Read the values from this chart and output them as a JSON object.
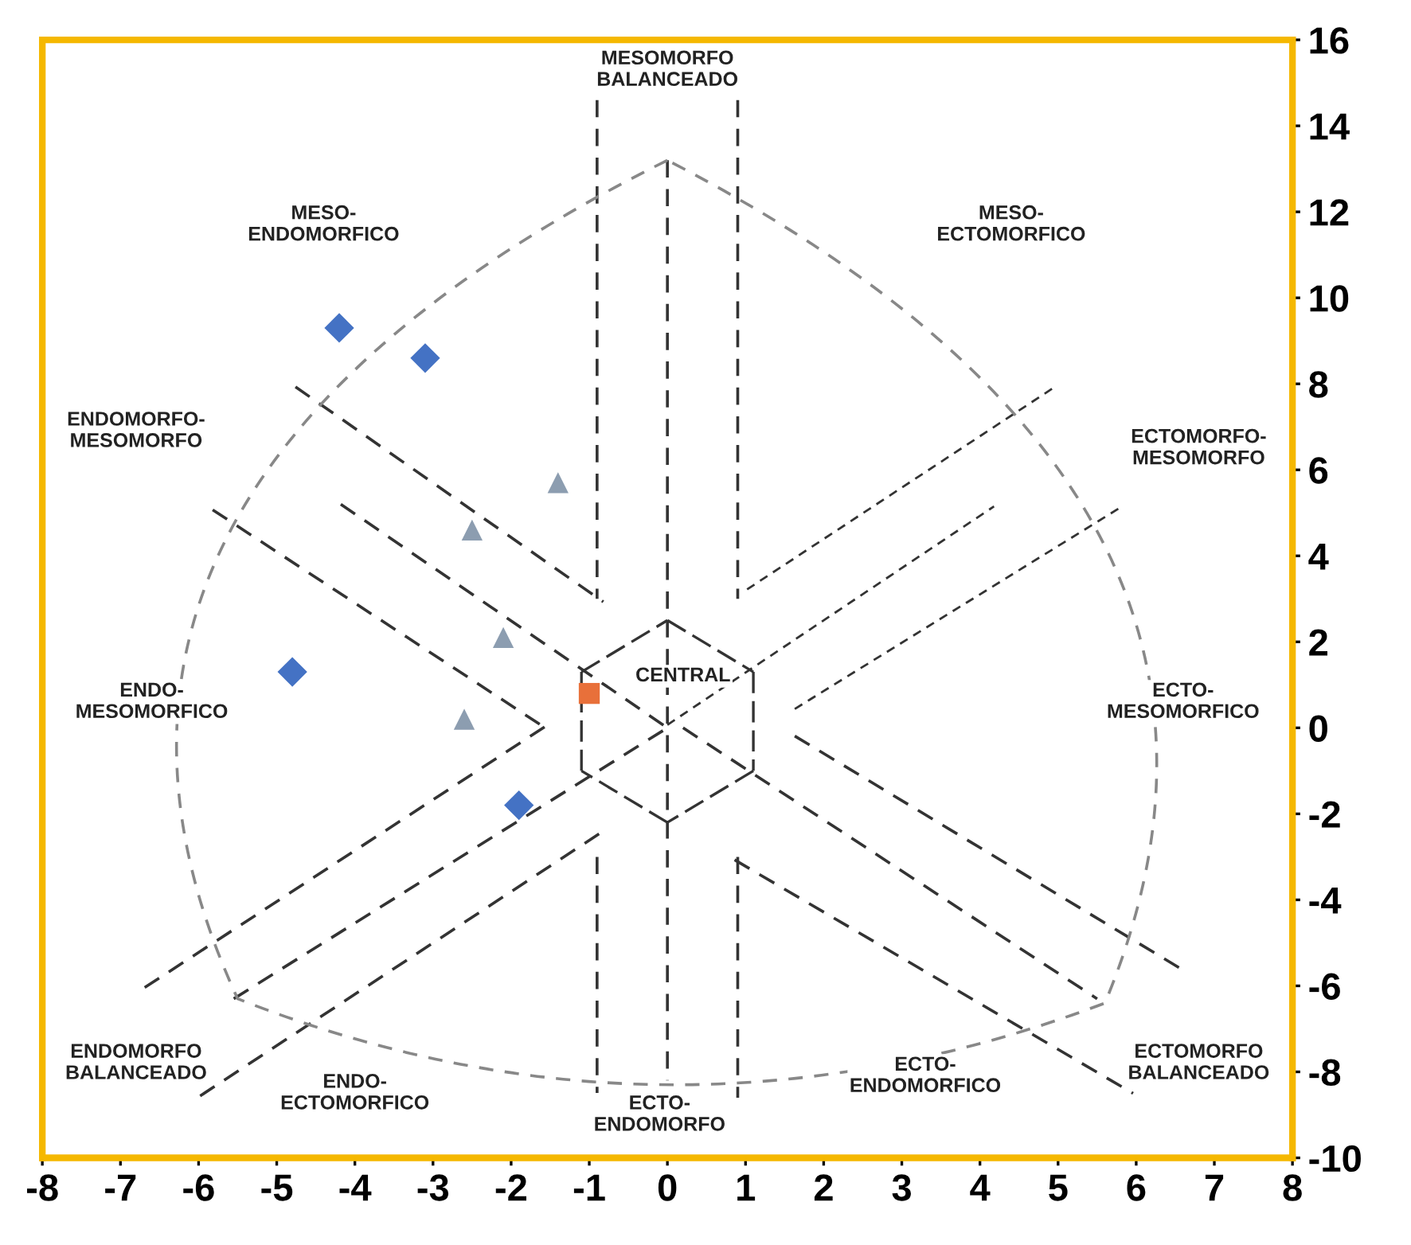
{
  "chart_data": {
    "type": "scatter",
    "xlim": [
      -8,
      8
    ],
    "ylim": [
      -10,
      16
    ],
    "xticks": [
      -8,
      -7,
      -6,
      -5,
      -4,
      -3,
      -2,
      -1,
      0,
      1,
      2,
      3,
      4,
      5,
      6,
      7,
      8
    ],
    "yticks": [
      -10,
      -8,
      -6,
      -4,
      -2,
      0,
      2,
      4,
      6,
      8,
      10,
      12,
      14,
      16
    ],
    "series": [
      {
        "color": "#4472c4",
        "marker": "diamond",
        "x": [
          -4.2,
          -3.1,
          -4.8,
          -1.9
        ],
        "values": [
          9.3,
          8.6,
          1.3,
          -1.8
        ]
      },
      {
        "color": "#8c9db0",
        "marker": "triangle",
        "x": [
          -1.4,
          -2.5,
          -2.1,
          -2.6
        ],
        "values": [
          5.7,
          4.6,
          2.1,
          0.2
        ]
      },
      {
        "color": "#e8703a",
        "marker": "square",
        "x": [
          -1.0
        ],
        "values": [
          0.8
        ]
      }
    ],
    "annotations": [
      "MESOMORFO\nBALANCEADO",
      "MESO-\nENDOMORFICO",
      "MESO-\nECTOMORFICO",
      "ENDOMORFO-\nMESOMORFO",
      "ECTOMORFO-\nMESOMORFO",
      "ENDO-\nMESOMORFICO",
      "CENTRAL",
      "ECTO-\nMESOMORFICO",
      "ENDOMORFO\nBALANCEADO",
      "ECTOMORFO\nBALANCEADO",
      "ENDO-\nECTOMORFICO",
      "ECTO-\nENDOMORFO",
      "ECTO-\nENDOMORFICO"
    ]
  }
}
